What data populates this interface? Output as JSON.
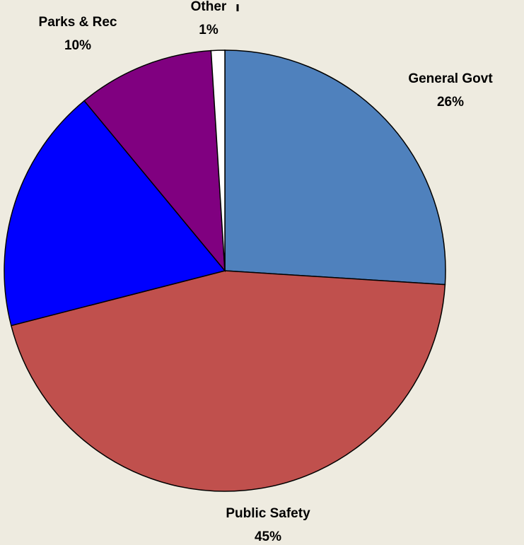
{
  "chart_data": {
    "type": "pie",
    "categories": [
      "General Govt",
      "Public Safety",
      null,
      "Parks & Rec",
      "Other"
    ],
    "values": [
      26,
      45,
      18,
      10,
      1
    ],
    "value_labels": [
      "26%",
      "45%",
      null,
      "10%",
      "1%"
    ],
    "colors": [
      "#4f81bd",
      "#c0504d",
      "#0000ff",
      "#800080",
      "#ffffff"
    ]
  }
}
